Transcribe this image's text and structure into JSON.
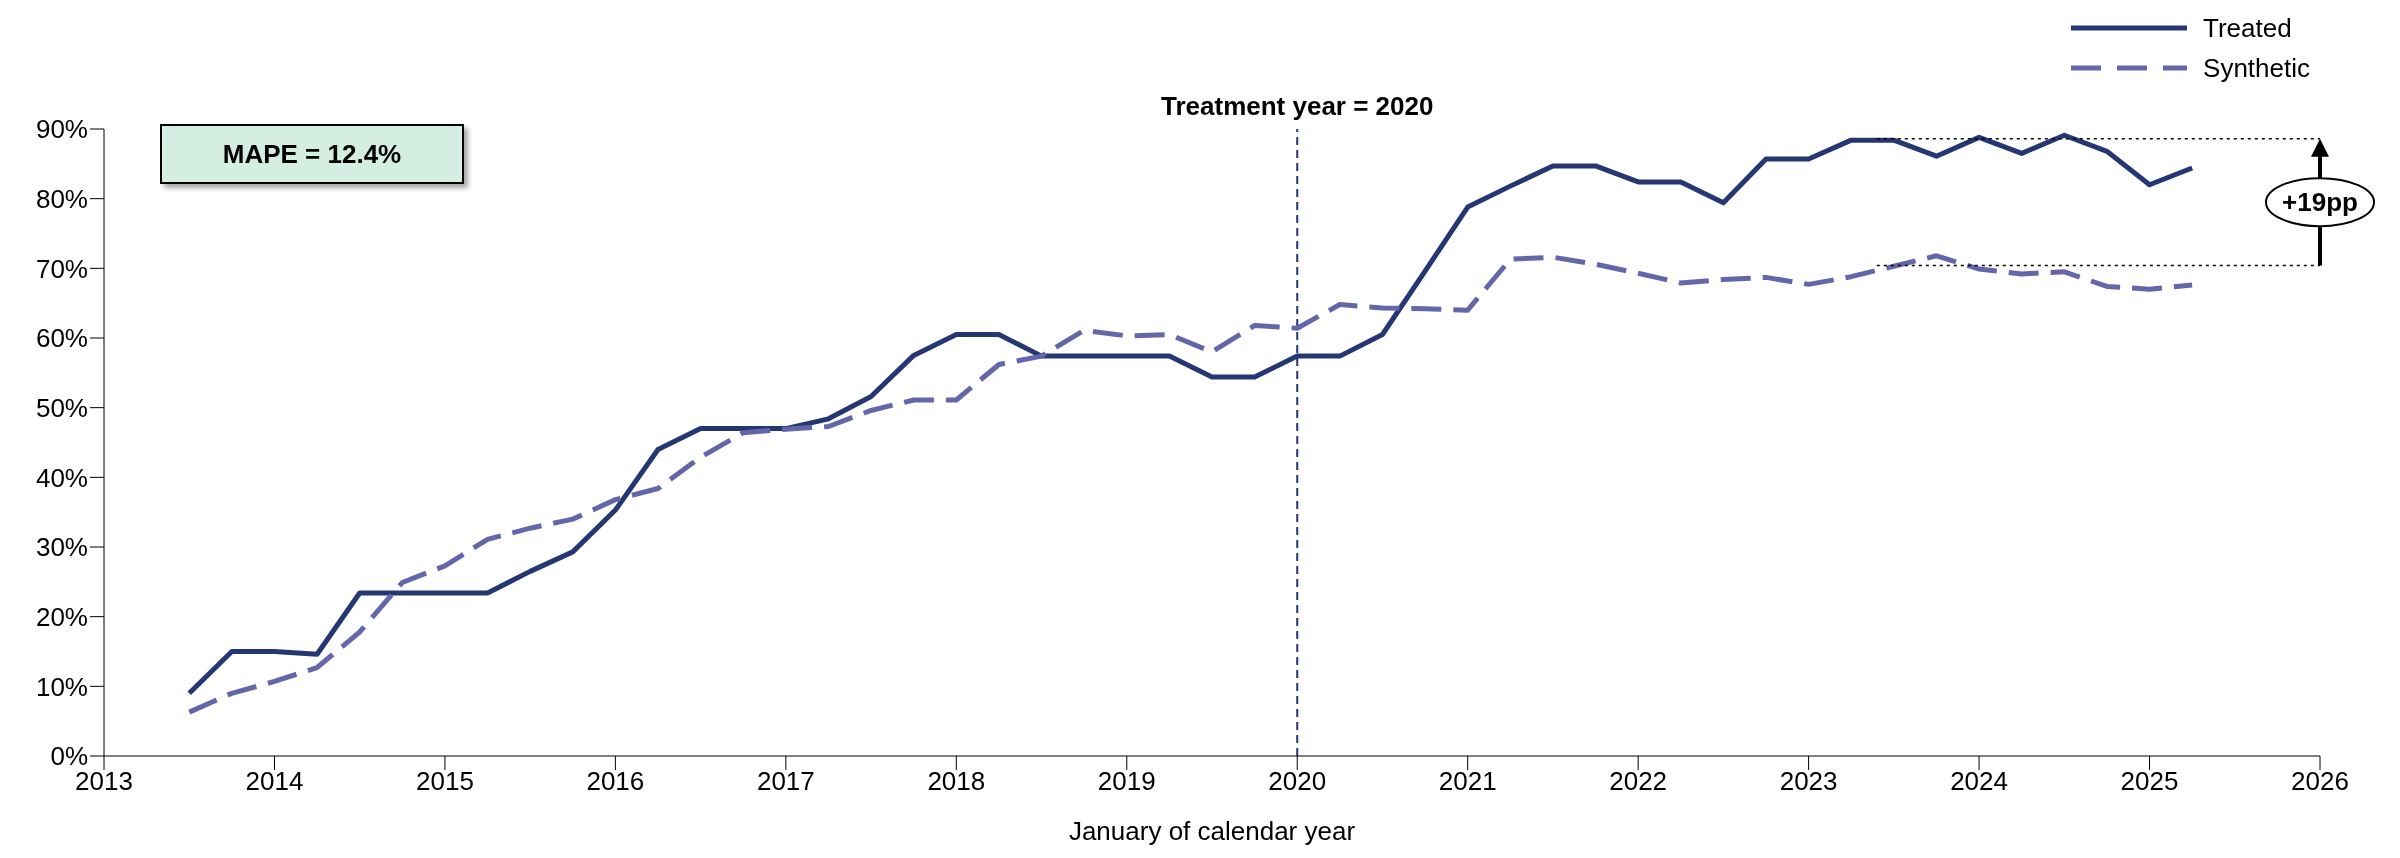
{
  "chart_data": {
    "type": "line",
    "xlabel": "January of calendar year",
    "x": [
      2013.5,
      2013.75,
      2014,
      2014.25,
      2014.5,
      2014.75,
      2015,
      2015.25,
      2015.5,
      2015.75,
      2016,
      2016.25,
      2016.5,
      2016.75,
      2017,
      2017.25,
      2017.5,
      2017.75,
      2018,
      2018.25,
      2018.5,
      2018.75,
      2019,
      2019.25,
      2019.5,
      2019.75,
      2020,
      2020.25,
      2020.5,
      2020.75,
      2021,
      2021.25,
      2021.5,
      2021.75,
      2022,
      2022.25,
      2022.5,
      2022.75,
      2023,
      2023.25,
      2023.5,
      2023.75,
      2024,
      2024.25,
      2024.5,
      2024.75,
      2025,
      2025.25
    ],
    "series": [
      {
        "name": "Treated",
        "color": "#253773",
        "line_style": "solid",
        "values": [
          9.0,
          15.0,
          15.0,
          14.6,
          23.4,
          23.4,
          23.4,
          23.4,
          26.5,
          29.3,
          35.3,
          44.0,
          47.0,
          47.0,
          47.0,
          48.4,
          51.6,
          57.5,
          60.5,
          60.5,
          57.4,
          57.4,
          57.4,
          57.4,
          54.4,
          54.4,
          57.4,
          57.4,
          60.5,
          69.6,
          78.8,
          81.8,
          84.7,
          84.7,
          82.4,
          82.4,
          79.4,
          85.7,
          85.7,
          88.4,
          88.4,
          86.1,
          88.8,
          86.5,
          89.1,
          86.8,
          82.0,
          84.4
        ]
      },
      {
        "name": "Synthetic",
        "color": "#6367aa",
        "line_style": "dashed",
        "values": [
          6.3,
          9.0,
          10.7,
          12.7,
          17.8,
          24.9,
          27.3,
          31.1,
          32.7,
          34.0,
          36.8,
          38.4,
          42.9,
          46.4,
          46.9,
          47.3,
          49.6,
          51.1,
          51.1,
          56.2,
          57.4,
          61.1,
          60.3,
          60.5,
          58.0,
          61.8,
          61.4,
          64.8,
          64.3,
          64.2,
          64.0,
          71.3,
          71.6,
          70.6,
          69.3,
          67.9,
          68.4,
          68.7,
          67.7,
          68.8,
          70.3,
          71.8,
          69.9,
          69.2,
          69.5,
          67.4,
          67.0,
          67.6
        ]
      }
    ],
    "xlim": [
      2013,
      2026
    ],
    "xticks": [
      2013,
      2014,
      2015,
      2016,
      2017,
      2018,
      2019,
      2020,
      2021,
      2022,
      2023,
      2024,
      2025,
      2026
    ],
    "ylim": [
      0,
      90
    ],
    "yticks": [
      {
        "value": 0,
        "label": "0%"
      },
      {
        "value": 10,
        "label": "10%"
      },
      {
        "value": 20,
        "label": "20%"
      },
      {
        "value": 30,
        "label": "30%"
      },
      {
        "value": 40,
        "label": "40%"
      },
      {
        "value": 50,
        "label": "50%"
      },
      {
        "value": 60,
        "label": "60%"
      },
      {
        "value": 70,
        "label": "70%"
      },
      {
        "value": 80,
        "label": "80%"
      },
      {
        "value": 90,
        "label": "90%"
      }
    ],
    "ref_lines": [
      {
        "axis": "x",
        "value": 2020,
        "label": "Treatment year = 2020",
        "color": "#253773",
        "line_style": "dashed"
      },
      {
        "axis": "y",
        "value": 88.6,
        "label": null,
        "color": "#000000",
        "line_style": "dotted"
      },
      {
        "axis": "y",
        "value": 70.4,
        "label": null,
        "color": "#000000",
        "line_style": "dotted"
      }
    ],
    "annotations": [
      "MAPE = 12.4%",
      "+19pp"
    ],
    "legend": "top right",
    "marker": "none"
  }
}
